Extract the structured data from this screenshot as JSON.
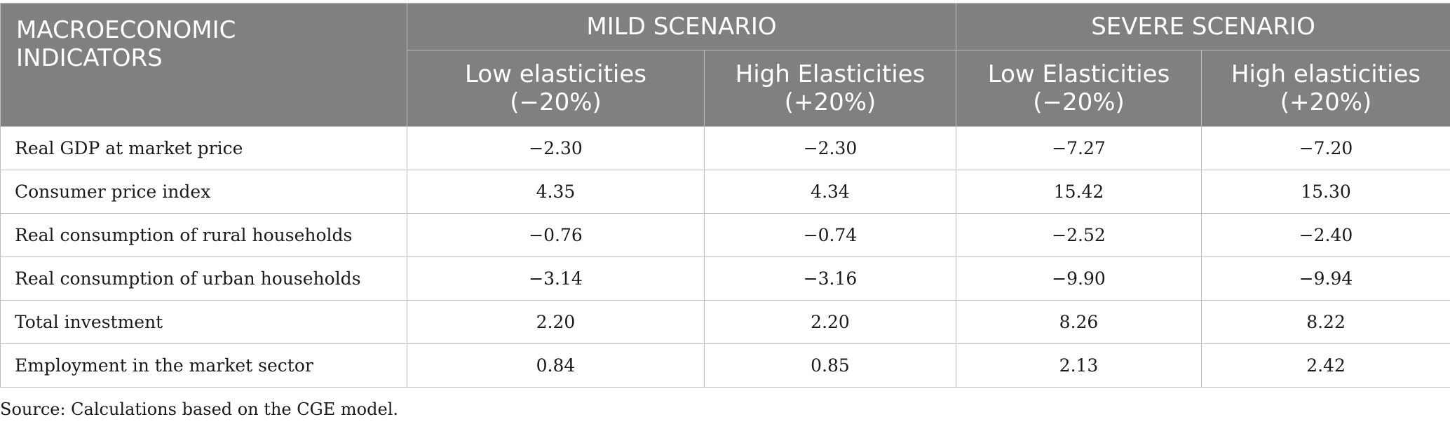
{
  "header": {
    "indicator": [
      "MACROECONOMIC",
      "INDICATORS"
    ],
    "groups": [
      "MILD SCENARIO",
      "SEVERE SCENARIO"
    ],
    "subheaders": [
      [
        "Low elasticities",
        "(−20%)"
      ],
      [
        "High Elasticities",
        "(+20%)"
      ],
      [
        "Low Elasticities",
        "(−20%)"
      ],
      [
        "High elasticities",
        "(+20%)"
      ]
    ]
  },
  "rows": [
    {
      "label": "Real GDP at market price",
      "values": [
        "−2.30",
        "−2.30",
        "−7.27",
        "−7.20"
      ]
    },
    {
      "label": "Consumer price index",
      "values": [
        "4.35",
        "4.34",
        "15.42",
        "15.30"
      ]
    },
    {
      "label": "Real consumption of rural households",
      "values": [
        "−0.76",
        "−0.74",
        "−2.52",
        "−2.40"
      ]
    },
    {
      "label": "Real consumption of urban households",
      "values": [
        "−3.14",
        "−3.16",
        "−9.90",
        "−9.94"
      ]
    },
    {
      "label": "Total investment",
      "values": [
        "2.20",
        "2.20",
        "8.26",
        "8.22"
      ]
    },
    {
      "label": "Employment in the market sector",
      "values": [
        "0.84",
        "0.85",
        "2.13",
        "2.42"
      ]
    }
  ],
  "source": "Source: Calculations based on the CGE model."
}
